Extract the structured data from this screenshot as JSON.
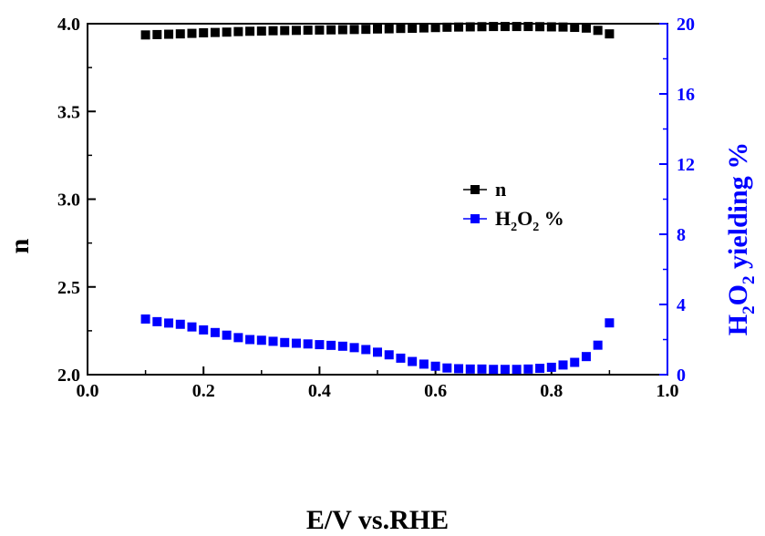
{
  "chart_data": {
    "type": "scatter",
    "xlabel": "E/V vs.RHE",
    "ylabel_left": "n",
    "ylabel_right": "H2O2 yielding %",
    "xlim": [
      0.0,
      1.0
    ],
    "ylim_left": [
      2.0,
      4.0
    ],
    "ylim_right": [
      0,
      20
    ],
    "x_ticks": [
      "0.0",
      "0.2",
      "0.4",
      "0.6",
      "0.8",
      "1.0"
    ],
    "y_left_ticks": [
      "2.0",
      "2.5",
      "3.0",
      "3.5",
      "4.0"
    ],
    "y_right_ticks": [
      "0",
      "4",
      "8",
      "12",
      "16",
      "20"
    ],
    "grid": false,
    "legend_position": "center-right",
    "colors": {
      "n": "#000000",
      "h2o2": "#0000ff"
    },
    "series": [
      {
        "name": "n",
        "axis": "left",
        "color": "#000000",
        "x": [
          0.1,
          0.12,
          0.14,
          0.16,
          0.18,
          0.2,
          0.22,
          0.24,
          0.26,
          0.28,
          0.3,
          0.32,
          0.34,
          0.36,
          0.38,
          0.4,
          0.42,
          0.44,
          0.46,
          0.48,
          0.5,
          0.52,
          0.54,
          0.56,
          0.58,
          0.6,
          0.62,
          0.64,
          0.66,
          0.68,
          0.7,
          0.72,
          0.74,
          0.76,
          0.78,
          0.8,
          0.82,
          0.84,
          0.86,
          0.88,
          0.9
        ],
        "values": [
          3.936,
          3.938,
          3.94,
          3.942,
          3.945,
          3.948,
          3.95,
          3.952,
          3.955,
          3.957,
          3.958,
          3.96,
          3.961,
          3.962,
          3.963,
          3.964,
          3.965,
          3.966,
          3.967,
          3.968,
          3.97,
          3.971,
          3.973,
          3.974,
          3.976,
          3.978,
          3.98,
          3.981,
          3.982,
          3.983,
          3.984,
          3.984,
          3.984,
          3.984,
          3.983,
          3.982,
          3.981,
          3.979,
          3.975,
          3.962,
          3.942
        ]
      },
      {
        "name": "H2O2 %",
        "axis": "right",
        "color": "#0000ff",
        "x": [
          0.1,
          0.12,
          0.14,
          0.16,
          0.18,
          0.2,
          0.22,
          0.24,
          0.26,
          0.28,
          0.3,
          0.32,
          0.34,
          0.36,
          0.38,
          0.4,
          0.42,
          0.44,
          0.46,
          0.48,
          0.5,
          0.52,
          0.54,
          0.56,
          0.58,
          0.6,
          0.62,
          0.64,
          0.66,
          0.68,
          0.7,
          0.72,
          0.74,
          0.76,
          0.78,
          0.8,
          0.82,
          0.84,
          0.86,
          0.88,
          0.9
        ],
        "values": [
          3.17,
          3.02,
          2.94,
          2.87,
          2.72,
          2.55,
          2.4,
          2.25,
          2.11,
          2.0,
          1.96,
          1.9,
          1.83,
          1.79,
          1.75,
          1.71,
          1.67,
          1.62,
          1.54,
          1.43,
          1.28,
          1.13,
          0.94,
          0.75,
          0.6,
          0.48,
          0.38,
          0.34,
          0.32,
          0.32,
          0.3,
          0.3,
          0.3,
          0.32,
          0.36,
          0.42,
          0.55,
          0.7,
          1.03,
          1.68,
          2.95
        ]
      }
    ],
    "legend": {
      "n_label": "n",
      "h2o2_main_1": "H",
      "h2o2_sub_1": "2",
      "h2o2_main_2": "O",
      "h2o2_sub_2": "2",
      "h2o2_main_3": " %"
    },
    "right_title_parts": {
      "a": "H",
      "b": "2",
      "c": "O",
      "d": "2",
      "e": " yielding %"
    }
  }
}
